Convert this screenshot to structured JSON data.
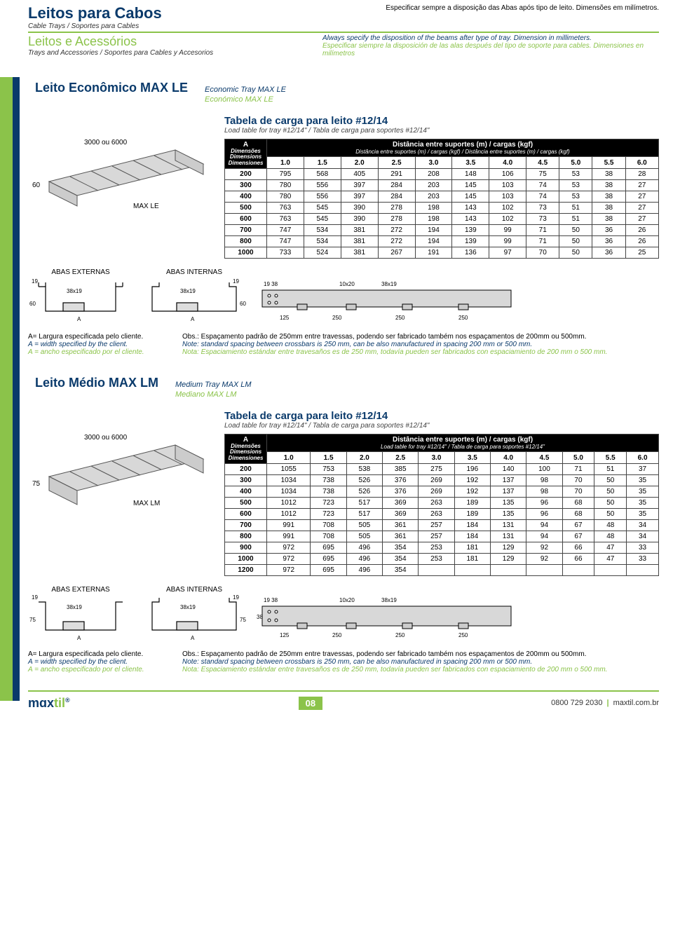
{
  "header": {
    "title1": "Leitos para Cabos",
    "sub1": "Cable Trays / Soportes para Cables",
    "title2": "Leitos e Acessórios",
    "sub2": "Trays and Accessories / Soportes para Cables y Accesorios",
    "right_pt": "Especificar sempre a disposição das Abas após tipo de leito. Dimensões em milímetros.",
    "right_en": "Always specify the disposition of the beams after type of tray. Dimension in millimeters.",
    "right_es": "Especificar siempre la disposición de las alas después del tipo de soporte para cables. Dimensiones en milímetros"
  },
  "colors": {
    "brand_blue": "#0a3a6b",
    "brand_green": "#8bc34a",
    "black": "#000000",
    "white": "#ffffff",
    "grid": "#444444"
  },
  "sec1": {
    "title": "Leito Econômico MAX LE",
    "sub_en": "Economic Tray MAX LE",
    "sub_es": "Económico MAX LE",
    "iso_len": "3000 ou 6000",
    "iso_h": "60",
    "iso_model": "MAX LE",
    "tbl_title": "Tabela de carga para leito #12/14",
    "tbl_sub": "Load table for tray #12/14\" / Tabla de carga para soportes #12/14\"",
    "a_label": "A",
    "dist_head": "Distância entre suportes (m) / cargas (kgf)",
    "dist_sub": "Distância entre suportes (m) / cargas (kgf) / Distância entre suportes (m) / cargas (kgf)",
    "dim_label": "Dimensões",
    "dim_sub_en": "Dimensions",
    "dim_sub_es": "Dimensiones",
    "dist_cols": [
      "1.0",
      "1.5",
      "2.0",
      "2.5",
      "3.0",
      "3.5",
      "4.0",
      "4.5",
      "5.0",
      "5.5",
      "6.0"
    ],
    "rows": [
      {
        "dim": "200",
        "v": [
          "795",
          "568",
          "405",
          "291",
          "208",
          "148",
          "106",
          "75",
          "53",
          "38",
          "28"
        ]
      },
      {
        "dim": "300",
        "v": [
          "780",
          "556",
          "397",
          "284",
          "203",
          "145",
          "103",
          "74",
          "53",
          "38",
          "27"
        ]
      },
      {
        "dim": "400",
        "v": [
          "780",
          "556",
          "397",
          "284",
          "203",
          "145",
          "103",
          "74",
          "53",
          "38",
          "27"
        ]
      },
      {
        "dim": "500",
        "v": [
          "763",
          "545",
          "390",
          "278",
          "198",
          "143",
          "102",
          "73",
          "51",
          "38",
          "27"
        ]
      },
      {
        "dim": "600",
        "v": [
          "763",
          "545",
          "390",
          "278",
          "198",
          "143",
          "102",
          "73",
          "51",
          "38",
          "27"
        ]
      },
      {
        "dim": "700",
        "v": [
          "747",
          "534",
          "381",
          "272",
          "194",
          "139",
          "99",
          "71",
          "50",
          "36",
          "26"
        ]
      },
      {
        "dim": "800",
        "v": [
          "747",
          "534",
          "381",
          "272",
          "194",
          "139",
          "99",
          "71",
          "50",
          "36",
          "26"
        ]
      },
      {
        "dim": "1000",
        "v": [
          "733",
          "524",
          "381",
          "267",
          "191",
          "136",
          "97",
          "70",
          "50",
          "36",
          "25"
        ]
      }
    ],
    "cross": {
      "ext_label": "ABAS EXTERNAS",
      "int_label": "ABAS INTERNAS",
      "d19": "19",
      "d38x19": "38x19",
      "d60": "60",
      "dA": "A",
      "rail_19_38": "19 38",
      "rail_10x20": "10x20",
      "rail_38x19": "38x19",
      "rail_125": "125",
      "rail_250": "250"
    }
  },
  "sec2": {
    "title": "Leito Médio MAX LM",
    "sub_en": "Medium Tray MAX LM",
    "sub_es": "Mediano MAX LM",
    "iso_len": "3000 ou 6000",
    "iso_h": "75",
    "iso_model": "MAX LM",
    "tbl_title": "Tabela de carga para leito #12/14",
    "tbl_sub": "Load table for tray #12/14\" / Tabla de carga para soportes #12/14\"",
    "a_label": "A",
    "dist_head": "Distância entre suportes (m) / cargas (kgf)",
    "dist_sub": "Load table for tray #12/14\" / Tabla de carga para soportes #12/14\"",
    "dim_label": "Dimensões",
    "dim_sub_en": "Dimensions",
    "dim_sub_es": "Dimensiones",
    "dist_cols": [
      "1.0",
      "1.5",
      "2.0",
      "2.5",
      "3.0",
      "3.5",
      "4.0",
      "4.5",
      "5.0",
      "5.5",
      "6.0"
    ],
    "rows": [
      {
        "dim": "200",
        "v": [
          "1055",
          "753",
          "538",
          "385",
          "275",
          "196",
          "140",
          "100",
          "71",
          "51",
          "37"
        ]
      },
      {
        "dim": "300",
        "v": [
          "1034",
          "738",
          "526",
          "376",
          "269",
          "192",
          "137",
          "98",
          "70",
          "50",
          "35"
        ]
      },
      {
        "dim": "400",
        "v": [
          "1034",
          "738",
          "526",
          "376",
          "269",
          "192",
          "137",
          "98",
          "70",
          "50",
          "35"
        ]
      },
      {
        "dim": "500",
        "v": [
          "1012",
          "723",
          "517",
          "369",
          "263",
          "189",
          "135",
          "96",
          "68",
          "50",
          "35"
        ]
      },
      {
        "dim": "600",
        "v": [
          "1012",
          "723",
          "517",
          "369",
          "263",
          "189",
          "135",
          "96",
          "68",
          "50",
          "35"
        ]
      },
      {
        "dim": "700",
        "v": [
          "991",
          "708",
          "505",
          "361",
          "257",
          "184",
          "131",
          "94",
          "67",
          "48",
          "34"
        ]
      },
      {
        "dim": "800",
        "v": [
          "991",
          "708",
          "505",
          "361",
          "257",
          "184",
          "131",
          "94",
          "67",
          "48",
          "34"
        ]
      },
      {
        "dim": "900",
        "v": [
          "972",
          "695",
          "496",
          "354",
          "253",
          "181",
          "129",
          "92",
          "66",
          "47",
          "33"
        ]
      },
      {
        "dim": "1000",
        "v": [
          "972",
          "695",
          "496",
          "354",
          "253",
          "181",
          "129",
          "92",
          "66",
          "47",
          "33"
        ]
      },
      {
        "dim": "1200",
        "v": [
          "972",
          "695",
          "496",
          "354",
          "",
          "",
          "",
          "",
          "",
          "",
          ""
        ]
      }
    ],
    "cross": {
      "ext_label": "ABAS EXTERNAS",
      "int_label": "ABAS INTERNAS",
      "d19": "19",
      "d38x19": "38x19",
      "d75": "75",
      "d38": "38",
      "dA": "A",
      "rail_19_38": "19 38",
      "rail_10x20": "10x20",
      "rail_38x19": "38x19",
      "rail_125": "125",
      "rail_250": "250"
    }
  },
  "notes": {
    "left_pt": "A= Largura especificada pelo cliente.",
    "left_en": "A = width specified by the client.",
    "left_es": "A = ancho especificado por el cliente.",
    "right_pt": "Obs.: Espaçamento padrão de 250mm entre travessas, podendo ser fabricado também nos espaçamentos de 200mm ou 500mm.",
    "right_en": "Note: standard spacing between crossbars is 250 mm, can be also manufactured in spacing 200 mm or 500 mm.",
    "right_es": "Nota: Espaciamiento estándar entre travesaños es de 250 mm, todavía pueden ser fabricados con espaciamiento de 200 mm o 500 mm."
  },
  "footer": {
    "page": "08",
    "phone": "0800 729 2030",
    "url": "maxtil.com.br",
    "brand1": "mɑx",
    "brand2": "til"
  }
}
